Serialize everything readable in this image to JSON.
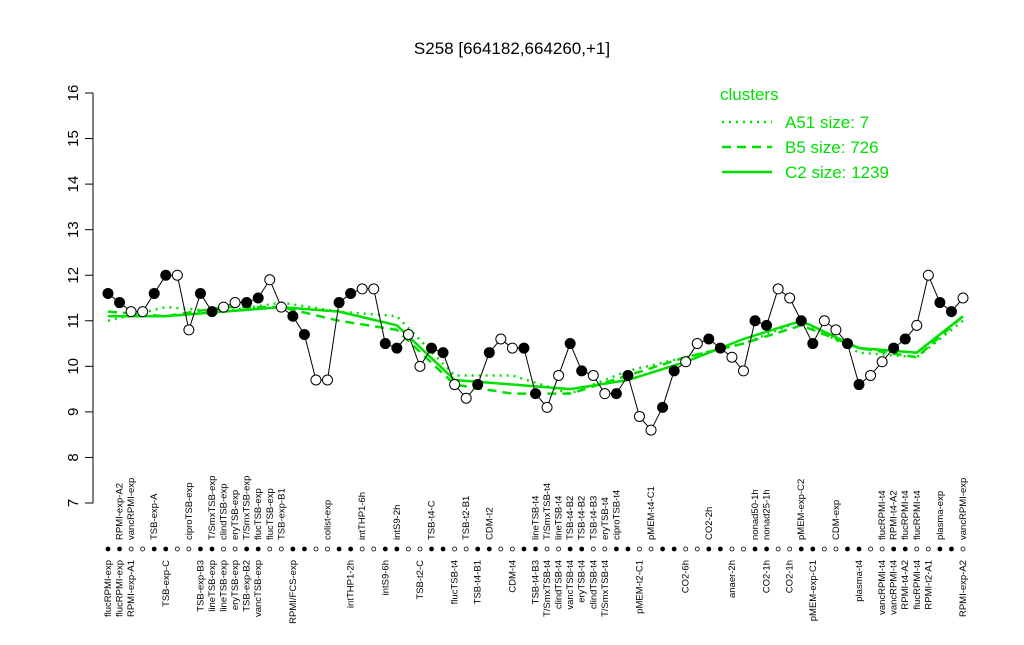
{
  "chart_data": {
    "type": "line",
    "title": "S258 [664182,664260,+1]",
    "categories_top": [
      null,
      "RPMI-exp-A2",
      "vancRPMI-exp",
      null,
      "TSB-exp-A",
      null,
      null,
      "ciproTSB-exp",
      null,
      "T/SmxTSB-exp",
      "clindTSB-exp",
      "eryTSB-exp",
      "T/SmxTSB-exp",
      "flucTSB-exp",
      "flucTSB-exp",
      "TSB-exp-B1",
      null,
      null,
      null,
      "colist-exp",
      null,
      null,
      "intTHP1-6h",
      null,
      null,
      "intS9-2h",
      null,
      null,
      "TSB-t4-C",
      null,
      null,
      "TSB-t2-B1",
      null,
      "CDM-t2",
      null,
      null,
      null,
      "lineTSB-t4",
      "T/SmxTSB-t4",
      "lineTSB-t4",
      "TSB-t4-B2",
      "TSB-t4-B2",
      "TSB-t4-B3",
      "eryTSB-t4",
      "ciproTSB-t4",
      null,
      null,
      "pMEM-t4-C1",
      null,
      null,
      null,
      null,
      "CO2-2h",
      null,
      null,
      null,
      "nonad50-1h",
      "nonad25-1h",
      null,
      null,
      "pMEM-exp-C2",
      null,
      null,
      "CDM-exp",
      null,
      null,
      null,
      "flucRPMI-t4",
      "RPMI-t4-A2",
      "flucRPMI-t4",
      "flucRPMI-t4",
      null,
      "plasma-exp",
      null,
      "vancRPMI-exp"
    ],
    "categories_bottom": [
      "flucRPMI-exp",
      "flucRPMI-exp",
      "RPMI-exp-A1",
      null,
      null,
      "TSB-exp-C",
      null,
      null,
      "TSB-exp-B3",
      "lineTSB-exp",
      "lineTSB-exp",
      "eryTSB-exp",
      "TSB-exp-B2",
      "vancTSB-exp",
      null,
      null,
      "RPMI/FCS-exp",
      null,
      null,
      null,
      null,
      "intTHP1-2h",
      null,
      null,
      "intS9-6h",
      null,
      null,
      "TSB-t2-C",
      null,
      null,
      "flucTSB-t4",
      null,
      "TSB-t4-B1",
      null,
      null,
      "CDM-t4",
      null,
      "TSB-t4-B3",
      "T/SmxTSB-t4",
      "clindTSB-t4",
      "vancTSB-t4",
      "eryTSB-t4",
      "clindTSB-t4",
      "T/SmxTSB-t4",
      null,
      null,
      "pMEM-t2-C1",
      null,
      null,
      null,
      "CO2-6h",
      null,
      null,
      null,
      "anaer-2h",
      null,
      null,
      "CO2-1h",
      null,
      "CO2-1h",
      null,
      "pMEM-exp-C1",
      null,
      null,
      null,
      "plasma-t4",
      null,
      "vancRPMI-t4",
      "vancRPMI-t4",
      "RPMI-t4-A2",
      "flucRPMI-t4",
      "RPMI-t2-A1",
      null,
      null,
      "RPMI-exp-A2"
    ],
    "values": [
      11.6,
      11.4,
      11.2,
      11.2,
      11.6,
      12.0,
      12.0,
      10.8,
      11.6,
      11.2,
      11.3,
      11.4,
      11.4,
      11.5,
      11.9,
      11.3,
      11.1,
      10.7,
      9.7,
      9.7,
      11.4,
      11.6,
      11.7,
      11.7,
      10.5,
      10.4,
      10.7,
      10.0,
      10.4,
      10.3,
      9.6,
      9.3,
      9.6,
      10.3,
      10.6,
      10.4,
      10.4,
      9.4,
      9.1,
      9.8,
      10.5,
      9.9,
      9.8,
      9.4,
      9.4,
      9.8,
      8.9,
      8.6,
      9.1,
      9.9,
      10.1,
      10.5,
      10.6,
      10.4,
      10.2,
      9.9,
      11.0,
      10.9,
      11.7,
      11.5,
      11.0,
      10.5,
      11.0,
      10.8,
      10.5,
      9.6,
      9.8,
      10.1,
      10.4,
      10.6,
      10.9,
      12.0,
      11.4,
      11.2,
      11.5
    ],
    "ylim": [
      7,
      16
    ],
    "yticks": [
      7,
      8,
      9,
      10,
      11,
      12,
      13,
      14,
      15,
      16
    ],
    "legend_title": "clusters",
    "legend_color": "#00e000",
    "series": [
      {
        "name": "A51 size: 7",
        "color": "#00e000",
        "style": "dotted",
        "x": [
          0,
          5,
          10,
          15,
          20,
          25,
          30,
          35,
          40,
          45,
          50,
          55,
          60,
          65,
          70,
          74
        ],
        "values": [
          11.0,
          11.3,
          11.2,
          11.4,
          11.2,
          11.1,
          9.8,
          9.8,
          9.4,
          9.9,
          10.2,
          10.5,
          11.0,
          10.3,
          10.2,
          11.0
        ]
      },
      {
        "name": "B5 size: 726",
        "color": "#00e000",
        "style": "dashed",
        "x": [
          0,
          5,
          10,
          15,
          20,
          25,
          30,
          35,
          40,
          45,
          50,
          55,
          60,
          65,
          70,
          74
        ],
        "values": [
          11.2,
          11.1,
          11.3,
          11.3,
          11.0,
          10.8,
          9.6,
          9.4,
          9.4,
          9.8,
          10.2,
          10.5,
          10.9,
          10.4,
          10.2,
          11.1
        ]
      },
      {
        "name": "C2 size: 1239",
        "color": "#00e000",
        "style": "solid",
        "x": [
          0,
          5,
          10,
          15,
          20,
          25,
          30,
          35,
          40,
          45,
          50,
          55,
          60,
          65,
          70,
          74
        ],
        "values": [
          11.1,
          11.1,
          11.2,
          11.3,
          11.2,
          10.9,
          9.7,
          9.6,
          9.5,
          9.7,
          10.1,
          10.6,
          11.0,
          10.4,
          10.3,
          11.1
        ]
      }
    ]
  }
}
